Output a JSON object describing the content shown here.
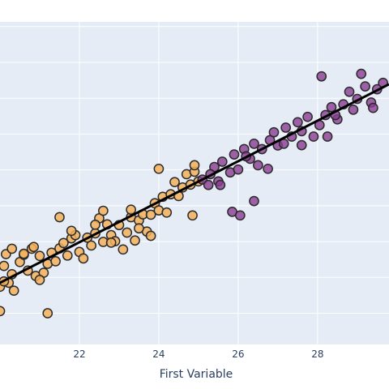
{
  "chart_data": {
    "type": "scatter",
    "title": "",
    "xlabel": "First Variable",
    "ylabel": "",
    "xlim": [
      20,
      29.8
    ],
    "ylim": [
      0,
      9
    ],
    "grid": true,
    "legend": "none",
    "x_ticks": [
      {
        "value": 22,
        "label": "22"
      },
      {
        "value": 24,
        "label": "24"
      },
      {
        "value": 26,
        "label": "26"
      },
      {
        "value": 28,
        "label": "28"
      }
    ],
    "y_grid_values": [
      0.87,
      1.87,
      2.87,
      3.87,
      4.87,
      5.87,
      6.87,
      7.87,
      8.87
    ],
    "colors": {
      "plot_bg": "#e5ecf6",
      "grid": "#ffffff",
      "low_group": "#f5b05a",
      "high_group": "#8b3c92",
      "marker_edge": "#2b2b2b",
      "trend": "#000000"
    },
    "series": [
      {
        "values": [
          [
            20.0,
            1.61
          ],
          [
            20.1,
            2.19
          ],
          [
            20.15,
            2.52
          ],
          [
            20.22,
            1.72
          ],
          [
            20.3,
            2.67
          ],
          [
            20.35,
            1.5
          ],
          [
            20.3,
            1.96
          ],
          [
            20.5,
            2.3
          ],
          [
            20.6,
            2.5
          ],
          [
            20.7,
            2.06
          ],
          [
            20.8,
            2.67
          ],
          [
            20.9,
            1.91
          ],
          [
            21.0,
            2.47
          ],
          [
            21.1,
            2.0
          ],
          [
            21.2,
            2.25
          ],
          [
            21.3,
            2.56
          ],
          [
            21.4,
            2.32
          ],
          [
            21.2,
            0.87
          ],
          [
            20.0,
            0.93
          ],
          [
            20.1,
            1.76
          ],
          [
            21.5,
            2.68
          ],
          [
            21.6,
            2.83
          ],
          [
            21.7,
            2.48
          ],
          [
            21.8,
            2.96
          ],
          [
            21.9,
            3.05
          ],
          [
            22.0,
            2.58
          ],
          [
            22.1,
            2.4
          ],
          [
            22.2,
            2.98
          ],
          [
            22.3,
            2.76
          ],
          [
            22.4,
            3.1
          ],
          [
            22.5,
            3.52
          ],
          [
            22.6,
            2.86
          ],
          [
            22.7,
            3.35
          ],
          [
            22.8,
            3.05
          ],
          [
            22.9,
            2.88
          ],
          [
            23.0,
            3.33
          ],
          [
            23.1,
            2.65
          ],
          [
            23.2,
            3.12
          ],
          [
            23.3,
            3.55
          ],
          [
            23.4,
            2.9
          ],
          [
            23.5,
            3.46
          ],
          [
            23.6,
            3.63
          ],
          [
            23.7,
            3.15
          ],
          [
            23.8,
            3.62
          ],
          [
            23.9,
            3.94
          ],
          [
            24.0,
            3.74
          ],
          [
            24.1,
            4.12
          ],
          [
            24.2,
            3.68
          ],
          [
            24.3,
            4.19
          ],
          [
            24.4,
            4.53
          ],
          [
            24.5,
            4.14
          ],
          [
            24.6,
            4.38
          ],
          [
            24.7,
            4.75
          ],
          [
            24.8,
            4.46
          ],
          [
            24.9,
            4.82
          ],
          [
            25.0,
            4.55
          ],
          [
            24.85,
            3.6
          ],
          [
            24.0,
            4.9
          ],
          [
            21.5,
            3.55
          ],
          [
            21.0,
            1.8
          ],
          [
            22.6,
            3.73
          ],
          [
            23.3,
            3.76
          ],
          [
            23.8,
            3.03
          ],
          [
            24.9,
            5.0
          ],
          [
            22.4,
            3.34
          ],
          [
            21.8,
            3.17
          ],
          [
            20.6,
            2.53
          ],
          [
            20.85,
            2.72
          ],
          [
            23.5,
            3.24
          ],
          [
            22.8,
            2.84
          ]
        ]
      },
      {
        "values": [
          [
            25.1,
            4.6
          ],
          [
            25.25,
            4.45
          ],
          [
            25.4,
            4.95
          ],
          [
            25.5,
            4.55
          ],
          [
            25.6,
            5.1
          ],
          [
            25.8,
            4.8
          ],
          [
            25.9,
            5.3
          ],
          [
            26.0,
            4.88
          ],
          [
            26.15,
            5.45
          ],
          [
            26.3,
            5.18
          ],
          [
            26.4,
            5.6
          ],
          [
            26.5,
            5.0
          ],
          [
            26.6,
            5.45
          ],
          [
            26.8,
            5.7
          ],
          [
            26.9,
            5.92
          ],
          [
            27.0,
            5.55
          ],
          [
            27.2,
            6.05
          ],
          [
            27.35,
            5.8
          ],
          [
            27.5,
            6.2
          ],
          [
            27.6,
            5.95
          ],
          [
            27.75,
            6.35
          ],
          [
            27.9,
            5.8
          ],
          [
            28.05,
            6.12
          ],
          [
            28.2,
            6.4
          ],
          [
            28.35,
            6.62
          ],
          [
            28.5,
            6.28
          ],
          [
            28.65,
            6.7
          ],
          [
            28.8,
            7.05
          ],
          [
            29.0,
            6.85
          ],
          [
            29.2,
            7.2
          ],
          [
            29.35,
            6.75
          ],
          [
            29.5,
            7.12
          ],
          [
            29.65,
            7.3
          ],
          [
            28.1,
            7.48
          ],
          [
            29.1,
            7.55
          ],
          [
            25.85,
            3.7
          ],
          [
            26.05,
            3.6
          ],
          [
            26.4,
            4.0
          ],
          [
            27.15,
            5.6
          ],
          [
            26.75,
            4.9
          ],
          [
            27.6,
            5.56
          ],
          [
            28.25,
            5.8
          ],
          [
            28.9,
            6.55
          ],
          [
            29.4,
            6.6
          ],
          [
            26.2,
            5.25
          ],
          [
            25.55,
            4.45
          ],
          [
            25.3,
            4.75
          ],
          [
            28.45,
            6.4
          ]
        ]
      }
    ],
    "trendline": {
      "x": [
        20.0,
        29.8
      ],
      "y": [
        1.72,
        7.26
      ]
    }
  }
}
